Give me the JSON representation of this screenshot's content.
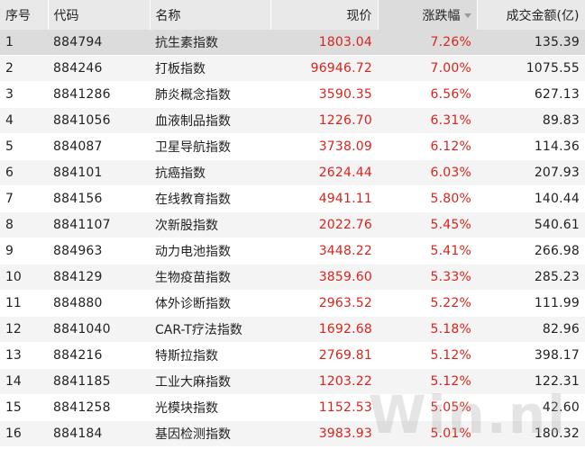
{
  "header": {
    "col_index": "序号",
    "col_code": "代码",
    "col_name": "名称",
    "col_price": "现价",
    "col_change": "涨跌幅",
    "col_turnover": "成交金额(亿)"
  },
  "rows": [
    {
      "index": "1",
      "code": "884794",
      "name": "抗生素指数",
      "price": "1803.04",
      "change": "7.26%",
      "turnover": "135.39"
    },
    {
      "index": "2",
      "code": "884246",
      "name": "打板指数",
      "price": "96946.72",
      "change": "7.00%",
      "turnover": "1075.55"
    },
    {
      "index": "3",
      "code": "8841286",
      "name": "肺炎概念指数",
      "price": "3590.35",
      "change": "6.56%",
      "turnover": "627.13"
    },
    {
      "index": "4",
      "code": "8841056",
      "name": "血液制品指数",
      "price": "1226.70",
      "change": "6.31%",
      "turnover": "89.83"
    },
    {
      "index": "5",
      "code": "884087",
      "name": "卫星导航指数",
      "price": "3738.09",
      "change": "6.12%",
      "turnover": "114.36"
    },
    {
      "index": "6",
      "code": "884101",
      "name": "抗癌指数",
      "price": "2624.44",
      "change": "6.03%",
      "turnover": "207.93"
    },
    {
      "index": "7",
      "code": "884156",
      "name": "在线教育指数",
      "price": "4941.11",
      "change": "5.80%",
      "turnover": "140.44"
    },
    {
      "index": "8",
      "code": "8841107",
      "name": "次新股指数",
      "price": "2022.76",
      "change": "5.45%",
      "turnover": "540.61"
    },
    {
      "index": "9",
      "code": "884963",
      "name": "动力电池指数",
      "price": "3448.22",
      "change": "5.41%",
      "turnover": "266.98"
    },
    {
      "index": "10",
      "code": "884129",
      "name": "生物疫苗指数",
      "price": "3859.60",
      "change": "5.33%",
      "turnover": "285.23"
    },
    {
      "index": "11",
      "code": "884880",
      "name": "体外诊断指数",
      "price": "2963.52",
      "change": "5.22%",
      "turnover": "111.99"
    },
    {
      "index": "12",
      "code": "8841040",
      "name": "CAR-T疗法指数",
      "price": "1692.68",
      "change": "5.18%",
      "turnover": "82.96"
    },
    {
      "index": "13",
      "code": "884216",
      "name": "特斯拉指数",
      "price": "2769.81",
      "change": "5.12%",
      "turnover": "398.17"
    },
    {
      "index": "14",
      "code": "8841185",
      "name": "工业大麻指数",
      "price": "1203.22",
      "change": "5.12%",
      "turnover": "122.31"
    },
    {
      "index": "15",
      "code": "8841258",
      "name": "光模块指数",
      "price": "1152.53",
      "change": "5.05%",
      "turnover": "42.60"
    },
    {
      "index": "16",
      "code": "884184",
      "name": "基因检测指数",
      "price": "3983.93",
      "change": "5.01%",
      "turnover": "180.32"
    }
  ],
  "watermark": "Win.nl",
  "colors": {
    "up": "#d9241c",
    "header_bg": "#e9e9e9",
    "selected_bg": "#dcdcdc"
  },
  "sort": {
    "column": "change",
    "direction": "descending",
    "icon": "sort-down-icon"
  }
}
